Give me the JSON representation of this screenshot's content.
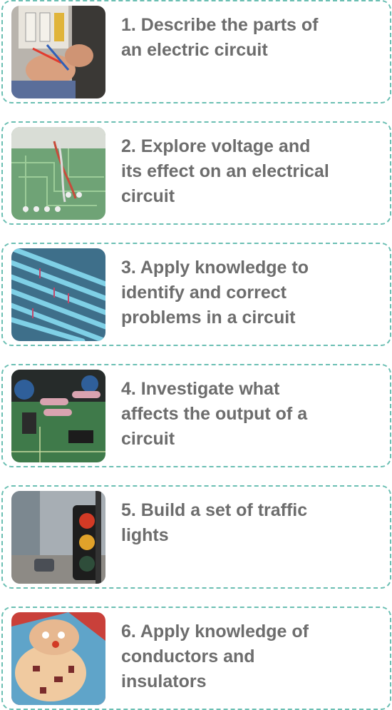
{
  "items": [
    {
      "lines": [
        "1. Describe the parts of",
        "an electric circuit"
      ]
    },
    {
      "lines": [
        "2. Explore voltage and",
        "its effect on an electrical",
        "circuit"
      ]
    },
    {
      "lines": [
        "3. Apply knowledge to",
        "identify and correct",
        "problems in a circuit"
      ]
    },
    {
      "lines": [
        "4. Investigate what",
        "affects the output of a",
        "circuit"
      ]
    },
    {
      "lines": [
        "5. Build a set of traffic",
        "lights"
      ]
    },
    {
      "lines": [
        "6. Apply knowledge of",
        "conductors and",
        "insulators"
      ]
    }
  ]
}
